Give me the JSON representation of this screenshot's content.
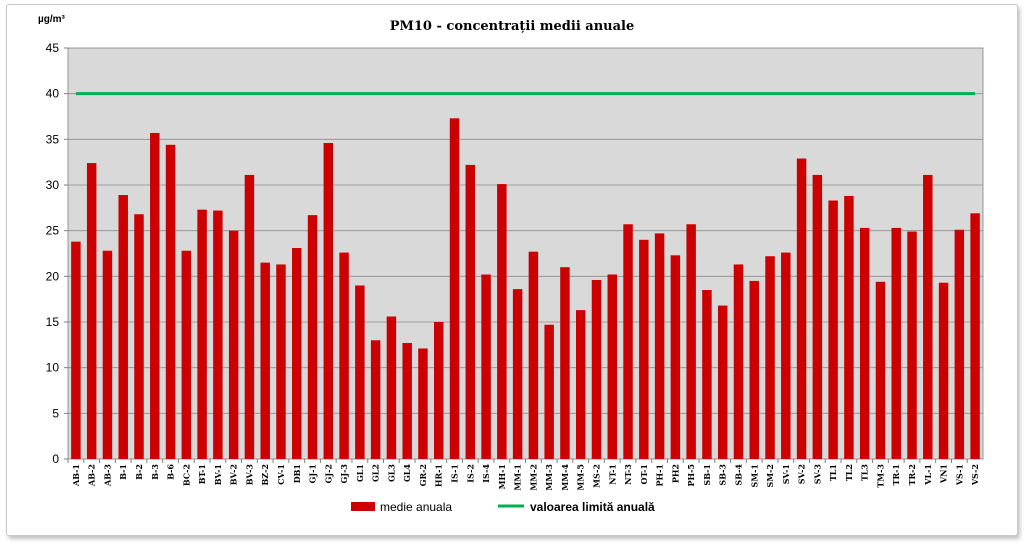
{
  "chart_data": {
    "type": "bar",
    "title": "PM10 - concentrații  medii anuale",
    "ylabel": "µg/m³",
    "xlabel": "",
    "ylim": [
      0,
      45
    ],
    "yticks": [
      0,
      5,
      10,
      15,
      20,
      25,
      30,
      35,
      40,
      45
    ],
    "grid": true,
    "legend_position": "bottom",
    "categories": [
      "AB-1",
      "AB-2",
      "AB-3",
      "B-1",
      "B-2",
      "B-3",
      "B-6",
      "BC-2",
      "BT-1",
      "BV-1",
      "BV-2",
      "BV-3",
      "BZ-2",
      "CV-1",
      "DB1",
      "GJ-1",
      "GJ-2",
      "GJ-3",
      "GL1",
      "GL2",
      "GL3",
      "GL4",
      "GR-2",
      "HR-1",
      "IS-1",
      "IS-2",
      "IS-4",
      "MH-1",
      "MM-1",
      "MM-2",
      "MM-3",
      "MM-4",
      "MM-5",
      "MS-2",
      "NT-1",
      "NT-3",
      "OT-1",
      "PH-1",
      "PH2",
      "PH-5",
      "SB-1",
      "SB-3",
      "SB-4",
      "SM-1",
      "SM-2",
      "SV-1",
      "SV-2",
      "SV-3",
      "TL1",
      "TL2",
      "TL3",
      "TM-3",
      "TR-1",
      "TR-2",
      "VL-1",
      "VN1",
      "VS-1",
      "VS-2"
    ],
    "series": [
      {
        "name": "medie anuala",
        "type": "bar",
        "color": "#cc0000",
        "values": [
          23.8,
          32.4,
          22.8,
          28.9,
          26.8,
          35.7,
          34.4,
          22.8,
          27.3,
          27.2,
          25.0,
          31.1,
          21.5,
          21.3,
          23.1,
          26.7,
          34.6,
          22.6,
          19.0,
          13.0,
          15.6,
          12.7,
          12.1,
          15.0,
          37.3,
          32.2,
          20.2,
          30.1,
          18.6,
          22.7,
          14.7,
          21.0,
          16.3,
          19.6,
          20.2,
          25.7,
          24.0,
          24.7,
          22.3,
          25.7,
          18.5,
          16.8,
          21.3,
          19.5,
          22.2,
          22.6,
          32.9,
          31.1,
          28.3,
          28.8,
          25.3,
          19.4,
          25.3,
          24.9,
          31.1,
          19.3,
          25.1,
          26.9
        ]
      },
      {
        "name": "valoarea limită anuală",
        "type": "line",
        "color": "#00b050",
        "value": 40
      }
    ]
  },
  "colors": {
    "plot_background": "#d9d9d9",
    "gridline": "#8c8c8c",
    "bar": "#cc0000",
    "limit_line": "#00b050"
  }
}
